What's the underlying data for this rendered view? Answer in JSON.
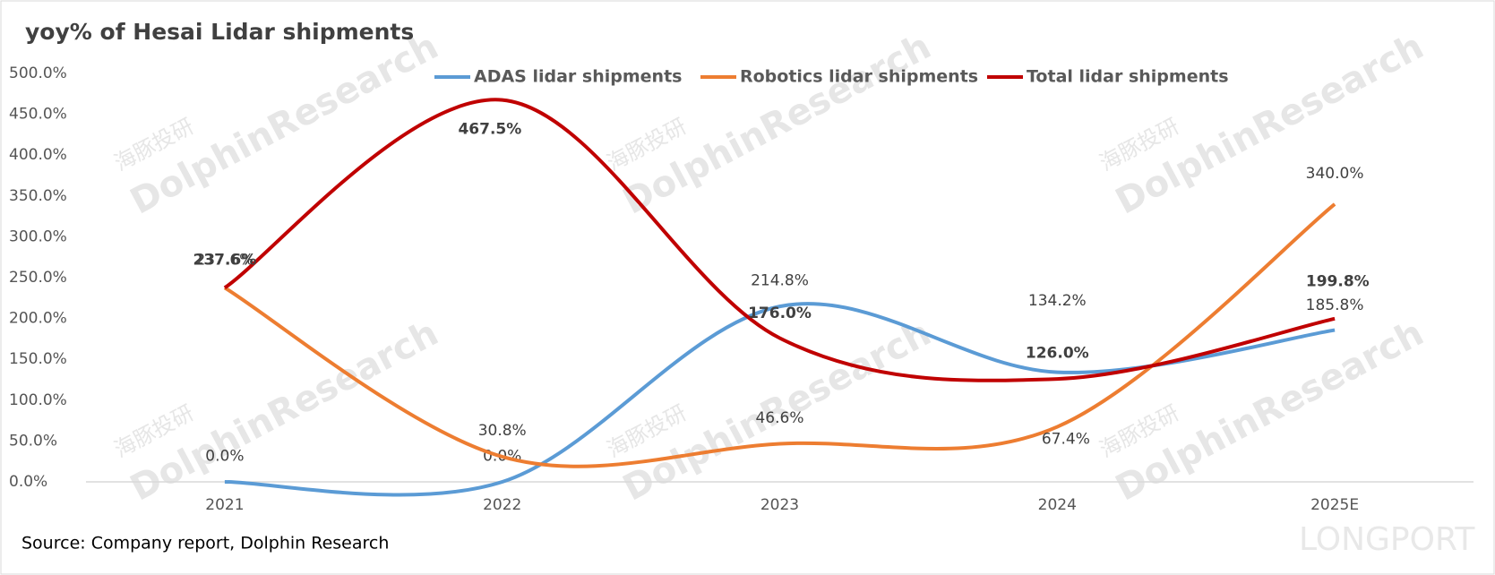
{
  "chart_data": {
    "type": "line",
    "title": "yoy% of Hesai Lidar shipments",
    "source": "Source: Company report, Dolphin Research",
    "watermark": "DolphinResearch",
    "watermark_cn": "海豚投研",
    "brand": "LONGPORT",
    "categories": [
      "2021",
      "2022",
      "2023",
      "2024",
      "2025E"
    ],
    "series": [
      {
        "name": "ADAS lidar shipments",
        "color": "#5b9bd5",
        "values": [
          0.0,
          0.0,
          214.8,
          134.2,
          185.8
        ],
        "value_labels": [
          "0.0%",
          "0.0%",
          "214.8%",
          "134.2%",
          "185.8%"
        ]
      },
      {
        "name": "Robotics lidar shipments",
        "color": "#ed7d31",
        "values": [
          237.6,
          30.8,
          46.6,
          67.4,
          340.0
        ],
        "value_labels": [
          "237.6%",
          "30.8%",
          "46.6%",
          "67.4%",
          "340.0%"
        ]
      },
      {
        "name": "Total lidar shipments",
        "color": "#c00000",
        "values": [
          237.6,
          467.5,
          176.0,
          126.0,
          199.8
        ],
        "value_labels": [
          "237.6%",
          "467.5%",
          "176.0%",
          "126.0%",
          "199.8%"
        ]
      }
    ],
    "ylim": [
      0,
      500
    ],
    "yticks": [
      {
        "value": 0,
        "label": "0.0%"
      },
      {
        "value": 50,
        "label": "50.0%"
      },
      {
        "value": 100,
        "label": "100.0%"
      },
      {
        "value": 150,
        "label": "150.0%"
      },
      {
        "value": 200,
        "label": "200.0%"
      },
      {
        "value": 250,
        "label": "250.0%"
      },
      {
        "value": 300,
        "label": "300.0%"
      },
      {
        "value": 350,
        "label": "350.0%"
      },
      {
        "value": 400,
        "label": "400.0%"
      },
      {
        "value": 450,
        "label": "450.0%"
      },
      {
        "value": 500,
        "label": "500.0%"
      }
    ],
    "grid": false,
    "legend": "top"
  }
}
